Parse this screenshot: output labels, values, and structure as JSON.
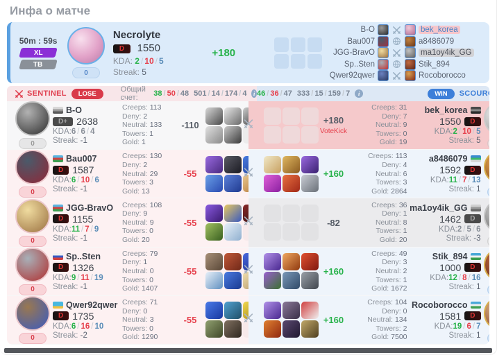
{
  "page_title": "Инфа о матче",
  "sep": "/",
  "labels": {
    "kda": "KDA:",
    "streak": "Streak:",
    "creeps": "Creeps:",
    "deny": "Deny:",
    "neutral": "Neutral:",
    "towers": "Towers:",
    "gold": "Gold:"
  },
  "icons": {
    "row_vs": "crossed-swords",
    "team_vs_alt": "globe"
  },
  "colors": {
    "green": "#27b24a",
    "red": "#e6404c",
    "blue": "#5b8db8",
    "sentinel": "#e04050",
    "scourge": "#3d7fd9"
  },
  "header": {
    "duration": "50m : 59s",
    "badges": {
      "xl": "XL",
      "tb": "TB"
    },
    "player": {
      "name": "Necrolyte",
      "rank": "D",
      "rating": "1550",
      "kda": [
        "2",
        "10",
        "5"
      ],
      "streak": "5",
      "slot": "0"
    },
    "rating_delta": "+180",
    "teams": [
      {
        "left": "B-O",
        "left_icon": [
          "#9a9a9a",
          "#2a2a2a"
        ],
        "vs": "swords",
        "right": "bek_korea",
        "right_icon": [
          "#f0c8d8",
          "#b06a90"
        ],
        "right_style": "pink"
      },
      {
        "left": "Bau007",
        "left_icon": [
          "#4a5a6a",
          "#a03040"
        ],
        "vs": "globe",
        "right": "a8486079",
        "right_icon": [
          "#c08040",
          "#6a3818"
        ],
        "right_style": ""
      },
      {
        "left": "JGG-BravO",
        "left_icon": [
          "#f0dca0",
          "#9a7040"
        ],
        "vs": "swords",
        "right": "ma1oy4ik_GG",
        "right_icon": [
          "#c0c0c0",
          "#606060"
        ],
        "right_style": "gray"
      },
      {
        "left": "Sp..Sten",
        "left_icon": [
          "#a8b0b8",
          "#c03030"
        ],
        "vs": "globe",
        "right": "Stik_894",
        "right_icon": [
          "#c06a40",
          "#5a2418"
        ],
        "right_style": ""
      },
      {
        "left": "Qwer92qwer",
        "left_icon": [
          "#6a80c0",
          "#2a3a60"
        ],
        "vs": "swords",
        "right": "Rocoborocco",
        "right_icon": [
          "#d8a050",
          "#802818"
        ],
        "right_style": ""
      }
    ]
  },
  "score_bar": {
    "sentinel_label": "SENTINEL",
    "lose_label": "LOSE",
    "scourge_label": "SCOURGE",
    "win_label": "WIN",
    "score_label": "Общий счет:",
    "info_icon": "i",
    "left_kda": [
      "38",
      "50",
      "48"
    ],
    "left_extra": [
      "501",
      "14",
      "174",
      "4"
    ],
    "right_kda": [
      "46",
      "36",
      "47"
    ],
    "right_extra": [
      "333",
      "15",
      "159",
      "7"
    ]
  },
  "rows": [
    {
      "left": {
        "state": "muted",
        "name": "B-O",
        "flag": [
          "#d8d8d8",
          "#9a9a9a",
          "#5a5a5a"
        ],
        "rank": "D+",
        "rating": "2638",
        "kda": [
          "6",
          "6",
          "4"
        ],
        "streak": "-1",
        "slot": "0",
        "creeps": "113",
        "deny": "2",
        "neutral": "133",
        "towers": "1",
        "gold": "1",
        "delta": "-110",
        "delta_style": "dark",
        "avatar": [
          "#b2b2b2",
          "#2e2e2e"
        ],
        "items": [
          [
            "#d8d8d8",
            "#4a4a4a"
          ],
          [
            "#e8e8e8",
            "#6a6a6a"
          ],
          [
            "#cfcfcf",
            "#2a2a2a"
          ],
          [
            "#e0e0e0",
            "#8a8a8a"
          ],
          [
            "#c8c8c8",
            "#3a3a3a"
          ],
          null
        ]
      },
      "right": {
        "state": "self",
        "name": "bek_korea",
        "flag": [
          "#4a4a4a",
          "#8a8a8a",
          "#2a2a2a"
        ],
        "rank": "D",
        "rating": "1550",
        "kda": [
          "2",
          "10",
          "5"
        ],
        "streak": "5",
        "slot": "0",
        "creeps": "31",
        "deny": "7",
        "neutral": "9",
        "towers": "0",
        "gold": "19",
        "delta": "+180",
        "delta_style": "dark",
        "votekick": "VoteKick",
        "avatar": [
          "#f2f2f2",
          "#909090"
        ],
        "items": [
          null,
          null,
          null,
          null,
          null,
          null
        ]
      }
    },
    {
      "left": {
        "state": "left",
        "name": "Bau007",
        "flag": [
          "#5ab4e0",
          "#d04040",
          "#3d9e50"
        ],
        "rank": "D",
        "rating": "1587",
        "kda": [
          "6",
          "10",
          "6"
        ],
        "streak": "-1",
        "slot": "0",
        "creeps": "130",
        "deny": "2",
        "neutral": "29",
        "towers": "3",
        "gold": "13",
        "delta": "-55",
        "delta_style": "red",
        "avatar": [
          "#4a5a6a",
          "#902838"
        ],
        "items": [
          [
            "#9a6ae0",
            "#4a2a80"
          ],
          [
            "#5a5a64",
            "#1a1a22"
          ],
          [
            "#4a7ae0",
            "#1a3a90"
          ],
          [
            "#6aa0e8",
            "#2a4ab0"
          ],
          [
            "#5a80d8",
            "#203a90"
          ],
          [
            "#e8c890",
            "#b07030"
          ]
        ]
      },
      "right": {
        "state": "right",
        "name": "a8486079",
        "flag": [
          "#3a8ad0",
          "#3db86b",
          "#d8d8d8"
        ],
        "rank": "D",
        "rating": "1592",
        "kda": [
          "11",
          "7",
          "13"
        ],
        "streak": "1",
        "slot": "0",
        "creeps": "113",
        "deny": "4",
        "neutral": "6",
        "towers": "3",
        "gold": "2864",
        "delta": "+160",
        "delta_style": "green",
        "avatar": [
          "#e8a850",
          "#7a4018"
        ],
        "items": [
          [
            "#f0e8c8",
            "#c8a060"
          ],
          [
            "#e0b860",
            "#8a5a20"
          ],
          [
            "#9a6ae0",
            "#3a2070"
          ],
          [
            "#e060d8",
            "#8a20a0"
          ],
          [
            "#e87040",
            "#a02818"
          ],
          [
            "#c8ccd4",
            "#6a7078"
          ]
        ]
      }
    },
    {
      "left": {
        "state": "left",
        "name": "JGG-BravO",
        "flag": [
          "#5ab4e0",
          "#d04040",
          "#3d9e50"
        ],
        "rank": "D",
        "rating": "1155",
        "kda": [
          "11",
          "7",
          "9"
        ],
        "streak": "-1",
        "slot": "0",
        "creeps": "108",
        "deny": "9",
        "neutral": "9",
        "towers": "0",
        "gold": "20",
        "delta": "-55",
        "delta_style": "red",
        "avatar": [
          "#f0dca0",
          "#9a7040"
        ],
        "items": [
          [
            "#8a5ae0",
            "#3a1a70"
          ],
          [
            "#e8c860",
            "#3a5ac0"
          ],
          [
            "#8a2828",
            "#2a1010"
          ],
          [
            "#a0c060",
            "#3a6020"
          ],
          [
            "#e8f0f8",
            "#90b0d0"
          ],
          null
        ]
      },
      "right": {
        "state": "mutedr",
        "name": "ma1oy4ik_GG",
        "flag": [
          "#d0d0d0",
          "#9a9a9a",
          "#6a6a6a"
        ],
        "rank": "D",
        "rating": "1462",
        "kda": [
          "2",
          "5",
          "6"
        ],
        "streak": "-3",
        "slot": "0",
        "creeps": "36",
        "deny": "1",
        "neutral": "8",
        "towers": "1",
        "gold": "20",
        "delta": "-82",
        "delta_style": "dark",
        "avatar": [
          "#d2d2d2",
          "#5a5a5a"
        ],
        "items": [
          null,
          null,
          null,
          null,
          null,
          null
        ]
      }
    },
    {
      "left": {
        "state": "left",
        "name": "Sp..Sten",
        "flag": [
          "#f0f0f0",
          "#3a5ac4",
          "#d04040"
        ],
        "rank": "D",
        "rating": "1326",
        "kda": [
          "9",
          "11",
          "19"
        ],
        "streak": "-1",
        "slot": "0",
        "creeps": "79",
        "deny": "1",
        "neutral": "0",
        "towers": "0",
        "gold": "1407",
        "delta": "-55",
        "delta_style": "red",
        "avatar": [
          "#a8b0b8",
          "#b03030"
        ],
        "items": [
          [
            "#a89078",
            "#5a4838"
          ],
          [
            "#c05838",
            "#702818"
          ],
          [
            "#4a6ae0",
            "#1a2a80"
          ],
          [
            "#e8f0f8",
            "#6090c0"
          ],
          [
            "#4a7ae0",
            "#1a3a90"
          ],
          [
            "#f0e0b0",
            "#b09060"
          ]
        ]
      },
      "right": {
        "state": "right",
        "name": "Stik_894",
        "flag": [
          "#49a8d8",
          "#f0f0f0",
          "#3d9e50"
        ],
        "rank": "D",
        "rating": "1000",
        "kda": [
          "12",
          "8",
          "16"
        ],
        "streak": "1",
        "slot": "0",
        "creeps": "49",
        "deny": "3",
        "neutral": "2",
        "towers": "1",
        "gold": "1672",
        "delta": "+160",
        "delta_style": "green",
        "avatar": [
          "#c06a40",
          "#5a2418"
        ],
        "items": [
          [
            "#b090e8",
            "#4a2890"
          ],
          [
            "#f0a860",
            "#903a10"
          ],
          [
            "#e05030",
            "#801810"
          ],
          [
            "#9a60d0",
            "#3a7030"
          ],
          [
            "#7a98b8",
            "#304a68"
          ],
          [
            "#9aa0a8",
            "#40464e"
          ]
        ]
      }
    },
    {
      "left": {
        "state": "left",
        "name": "Qwer92qwer",
        "flag": [
          "#49b8e0",
          "#49b8e0",
          "#f0c040"
        ],
        "rank": "D",
        "rating": "1735",
        "kda": [
          "6",
          "16",
          "10"
        ],
        "streak": "-2",
        "slot": "0",
        "creeps": "71",
        "deny": "0",
        "neutral": "3",
        "towers": "0",
        "gold": "1290",
        "delta": "-55",
        "delta_style": "red",
        "avatar": [
          "#9a7850",
          "#3a5ac0"
        ],
        "items": [
          [
            "#4a7ae8",
            "#1838a0"
          ],
          [
            "#50a0d0",
            "#205068"
          ],
          [
            "#f0d850",
            "#a08010"
          ],
          [
            "#90a070",
            "#404828"
          ],
          [
            "#807060",
            "#302820"
          ],
          null
        ]
      },
      "right": {
        "state": "right",
        "name": "Rocoborocco",
        "flag": [
          "#49a8d8",
          "#f0f0f0",
          "#3d9e50"
        ],
        "rank": "D",
        "rating": "1581",
        "kda": [
          "19",
          "6",
          "7"
        ],
        "streak": "1",
        "slot": "0",
        "creeps": "104",
        "deny": "0",
        "neutral": "134",
        "towers": "2",
        "gold": "7500",
        "delta": "+160",
        "delta_style": "green",
        "avatar": [
          "#e0c090",
          "#7a2818"
        ],
        "items": [
          [
            "#b090e8",
            "#4a2890"
          ],
          [
            "#8a7898",
            "#3a3048"
          ],
          [
            "#d04040",
            "#f0f0f0"
          ],
          [
            "#e08030",
            "#902810"
          ],
          [
            "#5a4870",
            "#201830"
          ],
          [
            "#c0a868",
            "#504020"
          ]
        ]
      }
    }
  ]
}
